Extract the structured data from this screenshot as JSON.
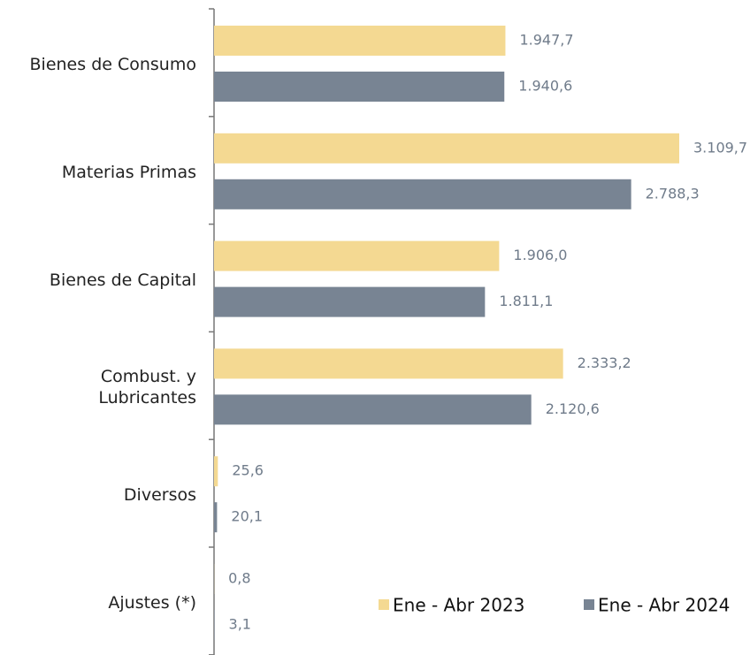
{
  "chart_data": {
    "type": "bar",
    "orientation": "horizontal",
    "categories": [
      "Bienes de Consumo",
      "Materias Primas",
      "Bienes de Capital",
      "Combust. y\nLubricantes",
      "Diversos",
      "Ajustes (*)"
    ],
    "series": [
      {
        "name": "Ene - Abr 2023",
        "color": "#f4d992",
        "values": [
          1947.7,
          3109.7,
          1906.0,
          2333.2,
          25.6,
          0.8
        ],
        "value_labels": [
          "1.947,7",
          "3.109,7",
          "1.906,0",
          "2.333,2",
          "25,6",
          "0,8"
        ]
      },
      {
        "name": "Ene - Abr 2024",
        "color": "#788493",
        "values": [
          1940.6,
          2788.3,
          1811.1,
          2120.6,
          20.1,
          3.1
        ],
        "value_labels": [
          "1.940,6",
          "2.788,3",
          "1.811,1",
          "2.120,6",
          "20,1",
          "3,1"
        ]
      }
    ],
    "legend": "lower right"
  }
}
